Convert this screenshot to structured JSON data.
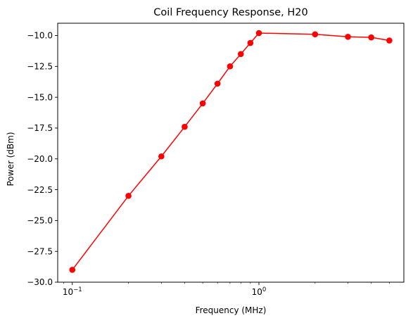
{
  "chart_data": {
    "type": "line",
    "title": "Coil Frequency Response, H20",
    "xlabel": "Frequency (MHz)",
    "ylabel": "Power (dBm)",
    "xscale": "log",
    "xlim": [
      0.0835,
      5.98
    ],
    "ylim": [
      -30.0,
      -9.0
    ],
    "grid": false,
    "legend": "none",
    "x_ticks": [
      {
        "value": 0.1,
        "base": "10",
        "exp": "−1"
      },
      {
        "value": 1.0,
        "base": "10",
        "exp": "0"
      }
    ],
    "y_ticks": [
      {
        "value": -10.0,
        "label": "−10.0"
      },
      {
        "value": -12.5,
        "label": "−12.5"
      },
      {
        "value": -15.0,
        "label": "−15.0"
      },
      {
        "value": -17.5,
        "label": "−17.5"
      },
      {
        "value": -20.0,
        "label": "−20.0"
      },
      {
        "value": -22.5,
        "label": "−22.5"
      },
      {
        "value": -25.0,
        "label": "−25.0"
      },
      {
        "value": -27.5,
        "label": "−27.5"
      },
      {
        "value": -30.0,
        "label": "−30.0"
      }
    ],
    "series": [
      {
        "color": "#ff0000",
        "marker": "circle",
        "x": [
          0.1,
          0.2,
          0.3,
          0.4,
          0.5,
          0.6,
          0.7,
          0.8,
          0.9,
          1.0,
          2.0,
          3.0,
          4.0,
          5.0
        ],
        "y": [
          -29.0,
          -23.0,
          -19.8,
          -17.4,
          -15.5,
          -13.9,
          -12.5,
          -11.5,
          -10.6,
          -9.8,
          -9.9,
          -10.1,
          -10.15,
          -10.4
        ]
      }
    ]
  }
}
